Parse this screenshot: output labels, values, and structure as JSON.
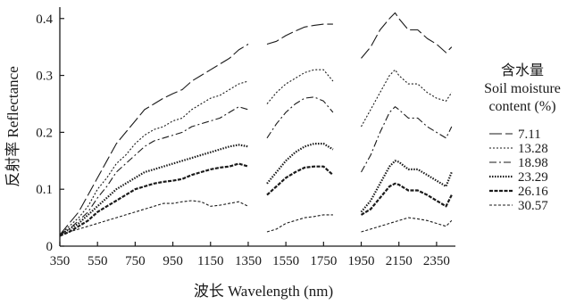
{
  "chart_data": {
    "type": "line",
    "xlabel": "波长 Wavelength (nm)",
    "ylabel": "反射率 Reflectance",
    "xlim": [
      350,
      2450
    ],
    "ylim": [
      0,
      0.42
    ],
    "xticks": [
      "350",
      "550",
      "750",
      "950",
      "1150",
      "1350",
      "1550",
      "1750",
      "1950",
      "2150",
      "2350"
    ],
    "yticks": [
      "0",
      "0.1",
      "0.2",
      "0.3",
      "0.4"
    ],
    "legend": {
      "title_lines": [
        "含水量",
        "Soil moisture",
        "content (%)"
      ],
      "placement": "right"
    },
    "series": [
      {
        "name": "7.11",
        "dash": "14 4",
        "color": "#1a1a1a",
        "width": 1.1,
        "segments": [
          [
            [
              350,
              0.02
            ],
            [
              400,
              0.04
            ],
            [
              450,
              0.06
            ],
            [
              500,
              0.09
            ],
            [
              550,
              0.12
            ],
            [
              600,
              0.15
            ],
            [
              650,
              0.18
            ],
            [
              700,
              0.2
            ],
            [
              750,
              0.22
            ],
            [
              800,
              0.24
            ],
            [
              850,
              0.25
            ],
            [
              900,
              0.26
            ],
            [
              950,
              0.268
            ],
            [
              1000,
              0.275
            ],
            [
              1050,
              0.29
            ],
            [
              1100,
              0.3
            ],
            [
              1150,
              0.31
            ],
            [
              1200,
              0.32
            ],
            [
              1250,
              0.33
            ],
            [
              1300,
              0.345
            ],
            [
              1350,
              0.355
            ]
          ],
          [
            [
              1450,
              0.355
            ],
            [
              1500,
              0.36
            ],
            [
              1550,
              0.37
            ],
            [
              1600,
              0.378
            ],
            [
              1650,
              0.385
            ],
            [
              1700,
              0.388
            ],
            [
              1750,
              0.39
            ],
            [
              1800,
              0.39
            ]
          ],
          [
            [
              1950,
              0.33
            ],
            [
              2000,
              0.35
            ],
            [
              2050,
              0.38
            ],
            [
              2100,
              0.4
            ],
            [
              2130,
              0.41
            ],
            [
              2150,
              0.4
            ],
            [
              2200,
              0.38
            ],
            [
              2250,
              0.38
            ],
            [
              2300,
              0.365
            ],
            [
              2350,
              0.355
            ],
            [
              2400,
              0.34
            ],
            [
              2430,
              0.35
            ]
          ]
        ]
      },
      {
        "name": "13.28",
        "dash": "2 2",
        "color": "#1a1a1a",
        "width": 1.1,
        "segments": [
          [
            [
              350,
              0.02
            ],
            [
              400,
              0.035
            ],
            [
              450,
              0.05
            ],
            [
              500,
              0.07
            ],
            [
              550,
              0.1
            ],
            [
              600,
              0.12
            ],
            [
              650,
              0.145
            ],
            [
              700,
              0.16
            ],
            [
              750,
              0.18
            ],
            [
              800,
              0.195
            ],
            [
              850,
              0.205
            ],
            [
              900,
              0.21
            ],
            [
              950,
              0.22
            ],
            [
              1000,
              0.225
            ],
            [
              1050,
              0.24
            ],
            [
              1100,
              0.25
            ],
            [
              1150,
              0.26
            ],
            [
              1200,
              0.265
            ],
            [
              1250,
              0.275
            ],
            [
              1300,
              0.285
            ],
            [
              1350,
              0.29
            ]
          ],
          [
            [
              1450,
              0.25
            ],
            [
              1500,
              0.27
            ],
            [
              1550,
              0.285
            ],
            [
              1600,
              0.295
            ],
            [
              1650,
              0.305
            ],
            [
              1700,
              0.31
            ],
            [
              1750,
              0.31
            ],
            [
              1800,
              0.29
            ]
          ],
          [
            [
              1950,
              0.21
            ],
            [
              2000,
              0.24
            ],
            [
              2050,
              0.27
            ],
            [
              2100,
              0.3
            ],
            [
              2130,
              0.31
            ],
            [
              2150,
              0.3
            ],
            [
              2200,
              0.285
            ],
            [
              2250,
              0.285
            ],
            [
              2300,
              0.27
            ],
            [
              2350,
              0.26
            ],
            [
              2400,
              0.255
            ],
            [
              2430,
              0.27
            ]
          ]
        ]
      },
      {
        "name": "18.98",
        "dash": "8 3 2 3",
        "color": "#1a1a1a",
        "width": 1.1,
        "segments": [
          [
            [
              350,
              0.02
            ],
            [
              400,
              0.03
            ],
            [
              450,
              0.045
            ],
            [
              500,
              0.06
            ],
            [
              550,
              0.085
            ],
            [
              600,
              0.105
            ],
            [
              650,
              0.13
            ],
            [
              700,
              0.145
            ],
            [
              750,
              0.16
            ],
            [
              800,
              0.175
            ],
            [
              850,
              0.185
            ],
            [
              900,
              0.19
            ],
            [
              950,
              0.195
            ],
            [
              1000,
              0.2
            ],
            [
              1050,
              0.21
            ],
            [
              1100,
              0.215
            ],
            [
              1150,
              0.22
            ],
            [
              1200,
              0.225
            ],
            [
              1250,
              0.235
            ],
            [
              1300,
              0.245
            ],
            [
              1350,
              0.24
            ]
          ],
          [
            [
              1450,
              0.19
            ],
            [
              1500,
              0.215
            ],
            [
              1550,
              0.235
            ],
            [
              1600,
              0.25
            ],
            [
              1650,
              0.26
            ],
            [
              1700,
              0.262
            ],
            [
              1750,
              0.255
            ],
            [
              1800,
              0.235
            ]
          ],
          [
            [
              1950,
              0.13
            ],
            [
              2000,
              0.16
            ],
            [
              2050,
              0.2
            ],
            [
              2100,
              0.235
            ],
            [
              2130,
              0.245
            ],
            [
              2150,
              0.24
            ],
            [
              2200,
              0.225
            ],
            [
              2250,
              0.225
            ],
            [
              2300,
              0.21
            ],
            [
              2350,
              0.2
            ],
            [
              2400,
              0.19
            ],
            [
              2430,
              0.21
            ]
          ]
        ]
      },
      {
        "name": "23.29",
        "dash": "1.5 1.5",
        "color": "#1a1a1a",
        "width": 2.2,
        "segments": [
          [
            [
              350,
              0.02
            ],
            [
              400,
              0.03
            ],
            [
              450,
              0.04
            ],
            [
              500,
              0.055
            ],
            [
              550,
              0.07
            ],
            [
              600,
              0.085
            ],
            [
              650,
              0.1
            ],
            [
              700,
              0.11
            ],
            [
              750,
              0.12
            ],
            [
              800,
              0.13
            ],
            [
              850,
              0.135
            ],
            [
              900,
              0.14
            ],
            [
              950,
              0.145
            ],
            [
              1000,
              0.15
            ],
            [
              1050,
              0.155
            ],
            [
              1100,
              0.16
            ],
            [
              1150,
              0.165
            ],
            [
              1200,
              0.17
            ],
            [
              1250,
              0.175
            ],
            [
              1300,
              0.178
            ],
            [
              1350,
              0.175
            ]
          ],
          [
            [
              1450,
              0.11
            ],
            [
              1500,
              0.13
            ],
            [
              1550,
              0.15
            ],
            [
              1600,
              0.165
            ],
            [
              1650,
              0.175
            ],
            [
              1700,
              0.18
            ],
            [
              1750,
              0.18
            ],
            [
              1800,
              0.17
            ]
          ],
          [
            [
              1950,
              0.06
            ],
            [
              2000,
              0.08
            ],
            [
              2050,
              0.11
            ],
            [
              2100,
              0.14
            ],
            [
              2130,
              0.15
            ],
            [
              2150,
              0.148
            ],
            [
              2200,
              0.135
            ],
            [
              2250,
              0.135
            ],
            [
              2300,
              0.125
            ],
            [
              2350,
              0.115
            ],
            [
              2400,
              0.105
            ],
            [
              2430,
              0.13
            ]
          ]
        ]
      },
      {
        "name": "26.16",
        "dash": "4 1.5",
        "color": "#1a1a1a",
        "width": 2.2,
        "segments": [
          [
            [
              350,
              0.018
            ],
            [
              400,
              0.025
            ],
            [
              450,
              0.035
            ],
            [
              500,
              0.045
            ],
            [
              550,
              0.06
            ],
            [
              600,
              0.07
            ],
            [
              650,
              0.08
            ],
            [
              700,
              0.09
            ],
            [
              750,
              0.1
            ],
            [
              800,
              0.105
            ],
            [
              850,
              0.11
            ],
            [
              900,
              0.113
            ],
            [
              950,
              0.115
            ],
            [
              1000,
              0.118
            ],
            [
              1050,
              0.125
            ],
            [
              1100,
              0.13
            ],
            [
              1150,
              0.135
            ],
            [
              1200,
              0.138
            ],
            [
              1250,
              0.14
            ],
            [
              1300,
              0.145
            ],
            [
              1350,
              0.14
            ]
          ],
          [
            [
              1450,
              0.09
            ],
            [
              1500,
              0.105
            ],
            [
              1550,
              0.12
            ],
            [
              1600,
              0.13
            ],
            [
              1650,
              0.138
            ],
            [
              1700,
              0.14
            ],
            [
              1750,
              0.14
            ],
            [
              1800,
              0.125
            ]
          ],
          [
            [
              1950,
              0.055
            ],
            [
              2000,
              0.065
            ],
            [
              2050,
              0.085
            ],
            [
              2100,
              0.105
            ],
            [
              2130,
              0.11
            ],
            [
              2150,
              0.108
            ],
            [
              2200,
              0.098
            ],
            [
              2250,
              0.098
            ],
            [
              2300,
              0.09
            ],
            [
              2350,
              0.08
            ],
            [
              2400,
              0.07
            ],
            [
              2430,
              0.09
            ]
          ]
        ]
      },
      {
        "name": "30.57",
        "dash": "3 2",
        "color": "#1a1a1a",
        "width": 1.1,
        "segments": [
          [
            [
              350,
              0.02
            ],
            [
              400,
              0.025
            ],
            [
              450,
              0.03
            ],
            [
              500,
              0.035
            ],
            [
              550,
              0.04
            ],
            [
              600,
              0.045
            ],
            [
              650,
              0.05
            ],
            [
              700,
              0.055
            ],
            [
              750,
              0.06
            ],
            [
              800,
              0.065
            ],
            [
              850,
              0.07
            ],
            [
              900,
              0.075
            ],
            [
              950,
              0.075
            ],
            [
              1000,
              0.078
            ],
            [
              1050,
              0.08
            ],
            [
              1100,
              0.078
            ],
            [
              1150,
              0.07
            ],
            [
              1200,
              0.072
            ],
            [
              1250,
              0.075
            ],
            [
              1300,
              0.078
            ],
            [
              1350,
              0.07
            ]
          ],
          [
            [
              1450,
              0.025
            ],
            [
              1500,
              0.03
            ],
            [
              1550,
              0.04
            ],
            [
              1600,
              0.045
            ],
            [
              1650,
              0.05
            ],
            [
              1700,
              0.052
            ],
            [
              1750,
              0.055
            ],
            [
              1800,
              0.055
            ]
          ],
          [
            [
              1950,
              0.025
            ],
            [
              2000,
              0.03
            ],
            [
              2050,
              0.035
            ],
            [
              2100,
              0.04
            ],
            [
              2150,
              0.045
            ],
            [
              2200,
              0.05
            ],
            [
              2250,
              0.048
            ],
            [
              2300,
              0.045
            ],
            [
              2350,
              0.04
            ],
            [
              2400,
              0.035
            ],
            [
              2430,
              0.045
            ]
          ]
        ]
      }
    ]
  }
}
